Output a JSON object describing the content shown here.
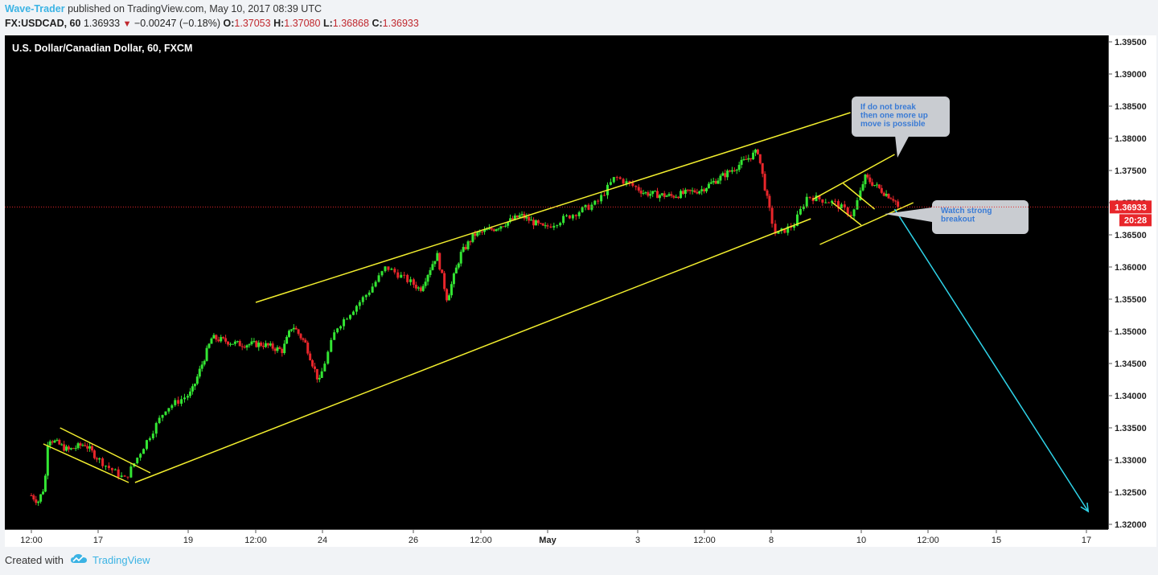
{
  "header": {
    "author": "Wave-Trader",
    "published_text": "published on TradingView.com, May 10, 2017 08:39 UTC",
    "symbol": "FX:USDCAD, 60",
    "last": "1.36933",
    "change": "−0.00247 (−0.18%)",
    "open_label": "O:",
    "open": "1.37053",
    "high_label": "H:",
    "high": "1.37080",
    "low_label": "L:",
    "low": "1.36868",
    "close_label": "C:",
    "close": "1.36933"
  },
  "footer": {
    "created_with": "Created with",
    "brand": "TradingView"
  },
  "colors": {
    "background": "#000000",
    "up_candle": "#33e533",
    "down_candle": "#e8262b",
    "trendline": "#f2ee2e",
    "projection": "#2fd3e8",
    "price_line": "#e8262b",
    "axis_text": "#222222",
    "callout_bg": "#c9ccd1",
    "callout_text": "#3a7bd5"
  },
  "chart_data": {
    "type": "candlestick",
    "title": "U.S. Dollar/Canadian Dollar, 60, FXCM",
    "y_axis": {
      "position": "right",
      "min": 1.32,
      "max": 1.395,
      "ticks": [
        "1.39500",
        "1.39000",
        "1.38500",
        "1.38000",
        "1.37500",
        "1.37000",
        "1.36500",
        "1.36000",
        "1.35500",
        "1.35000",
        "1.34500",
        "1.34000",
        "1.33500",
        "1.33000",
        "1.32500",
        "1.32000"
      ],
      "tick_values": [
        1.395,
        1.39,
        1.385,
        1.38,
        1.375,
        1.37,
        1.365,
        1.36,
        1.355,
        1.35,
        1.345,
        1.34,
        1.335,
        1.33,
        1.325,
        1.32
      ]
    },
    "x_axis": {
      "ticks": [
        "12:00",
        "17",
        "19",
        "12:00",
        "24",
        "26",
        "12:00",
        "May",
        "3",
        "12:00",
        "8",
        "10",
        "12:00",
        "15",
        "17"
      ],
      "tick_x": [
        0,
        1,
        2,
        3,
        4,
        5,
        6,
        7,
        8,
        9,
        10,
        11,
        12,
        13,
        14
      ]
    },
    "last_price": {
      "value": 1.36933,
      "label": "1.36933",
      "countdown": "20:28"
    },
    "price_path": [
      [
        0,
        1.3245
      ],
      [
        0.1,
        1.3235
      ],
      [
        0.2,
        1.326
      ],
      [
        0.25,
        1.3335
      ],
      [
        0.55,
        1.3315
      ],
      [
        0.8,
        1.3325
      ],
      [
        1.1,
        1.329
      ],
      [
        1.3,
        1.327
      ],
      [
        1.5,
        1.332
      ],
      [
        1.75,
        1.338
      ],
      [
        2.05,
        1.3405
      ],
      [
        2.35,
        1.349
      ],
      [
        2.75,
        1.348
      ],
      [
        3.1,
        1.348
      ],
      [
        3.4,
        1.347
      ],
      [
        3.55,
        1.351
      ],
      [
        3.75,
        1.348
      ],
      [
        3.95,
        1.342
      ],
      [
        4.15,
        1.3505
      ],
      [
        4.5,
        1.356
      ],
      [
        4.7,
        1.36
      ],
      [
        5.1,
        1.3565
      ],
      [
        5.35,
        1.362
      ],
      [
        5.5,
        1.355
      ],
      [
        5.7,
        1.362
      ],
      [
        5.9,
        1.365
      ],
      [
        6.2,
        1.366
      ],
      [
        6.6,
        1.368
      ],
      [
        6.95,
        1.366
      ],
      [
        7.25,
        1.368
      ],
      [
        7.55,
        1.37
      ],
      [
        7.75,
        1.374
      ],
      [
        8.1,
        1.3715
      ],
      [
        8.5,
        1.371
      ],
      [
        8.95,
        1.372
      ],
      [
        9.4,
        1.375
      ],
      [
        9.8,
        1.378
      ],
      [
        9.95,
        1.37
      ],
      [
        10.05,
        1.365
      ],
      [
        10.25,
        1.3665
      ],
      [
        10.4,
        1.371
      ],
      [
        10.7,
        1.37
      ],
      [
        10.9,
        1.368
      ],
      [
        11.05,
        1.374
      ],
      [
        11.35,
        1.3715
      ],
      [
        11.5,
        1.37053
      ],
      [
        11.55,
        1.36933
      ]
    ],
    "annotations": [
      {
        "type": "callout",
        "text_lines": [
          "If do not break",
          "then one more up",
          "move is possible"
        ]
      },
      {
        "type": "callout",
        "text_lines": [
          "Watch strong",
          "breakout"
        ]
      }
    ]
  }
}
